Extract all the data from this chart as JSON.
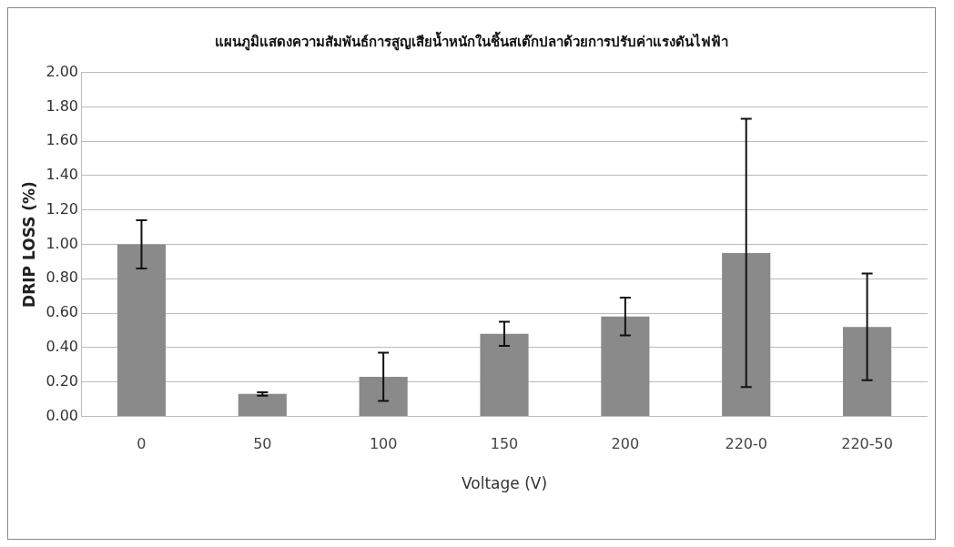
{
  "chart_data": {
    "type": "bar",
    "title": "แผนภูมิแสดงความสัมพันธ์การสูญเสียน้ำหนักในชิ้นสเต๊กปลาด้วยการปรับค่าแรงดันไฟฟ้า",
    "xlabel": "Voltage (V)",
    "ylabel": "DRIP LOSS (%)",
    "categories": [
      "0",
      "50",
      "100",
      "150",
      "200",
      "220-0",
      "220-50"
    ],
    "values": [
      1.0,
      0.13,
      0.23,
      0.48,
      0.58,
      0.95,
      0.52
    ],
    "errors": [
      0.14,
      0.01,
      0.14,
      0.07,
      0.11,
      0.78,
      0.31
    ],
    "color": "#8a8a8a",
    "ylim": [
      0,
      2
    ],
    "yticks": [
      {
        "value": 0,
        "label": "0.00"
      },
      {
        "value": 0.2,
        "label": "0.20"
      },
      {
        "value": 0.4,
        "label": "0.40"
      },
      {
        "value": 0.6,
        "label": "0.60"
      },
      {
        "value": 0.8,
        "label": "0.80"
      },
      {
        "value": 1,
        "label": "1.00"
      },
      {
        "value": 1.2,
        "label": "1.20"
      },
      {
        "value": 1.4,
        "label": "1.40"
      },
      {
        "value": 1.6,
        "label": "1.60"
      },
      {
        "value": 1.8,
        "label": "1.80"
      },
      {
        "value": 2,
        "label": "2.00"
      }
    ],
    "grid": "y"
  }
}
